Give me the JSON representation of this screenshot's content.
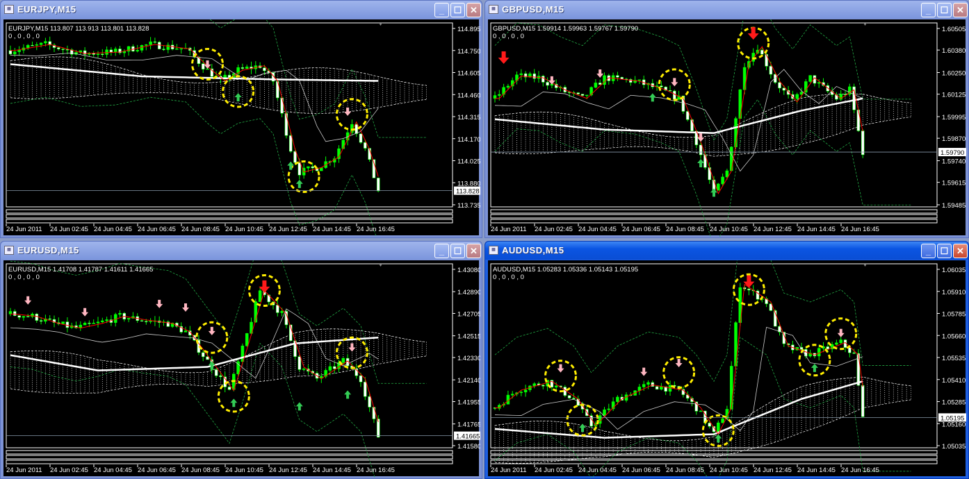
{
  "colors": {
    "bull": "#00ff00",
    "bear": "#ffffff",
    "ma_fast": "#ff0000",
    "ma_slow": "#ffffff",
    "circle": "#ffee00",
    "arrow_up": "#33cc55",
    "arrow_down_small": "#ffb6c1",
    "arrow_down_big": "#ff1a1a",
    "band": "#22aa44"
  },
  "time_labels": [
    "24 Jun 2011",
    "24 Jun 02:45",
    "24 Jun 04:45",
    "24 Jun 06:45",
    "24 Jun 08:45",
    "24 Jun 10:45",
    "24 Jun 12:45",
    "24 Jun 14:45",
    "24 Jun 16:45"
  ],
  "windows": [
    {
      "title": "EURJPY,M15",
      "active": false,
      "info": "EURJPY,M15  113.807 113.913 113.801 113.828",
      "info2": "0 , 0 , 0 , 0",
      "price_labels": [
        "114.895",
        "114.750",
        "114.605",
        "114.460",
        "114.315",
        "114.170",
        "114.025",
        "113.880",
        "113.735"
      ],
      "current": "113.828",
      "path": [
        [
          0,
          114.75
        ],
        [
          8,
          114.79
        ],
        [
          16,
          114.73
        ],
        [
          24,
          114.74
        ],
        [
          32,
          114.79
        ],
        [
          40,
          114.76
        ],
        [
          45,
          114.62
        ],
        [
          48,
          114.55
        ],
        [
          52,
          114.62
        ],
        [
          57,
          114.65
        ],
        [
          60,
          114.55
        ],
        [
          64,
          114.1
        ],
        [
          66,
          113.95
        ],
        [
          70,
          113.98
        ],
        [
          74,
          114.05
        ],
        [
          78,
          114.28
        ],
        [
          81,
          114.1
        ],
        [
          84,
          113.83
        ]
      ],
      "ma_slow": [
        [
          0,
          114.66
        ],
        [
          30,
          114.58
        ],
        [
          60,
          114.56
        ],
        [
          84,
          114.55
        ]
      ],
      "circles": [
        [
          45,
          114.66
        ],
        [
          52,
          114.48
        ],
        [
          67,
          113.92
        ],
        [
          78,
          114.33
        ]
      ],
      "arrows": [
        [
          45,
          114.63,
          "down-small"
        ],
        [
          52,
          114.47,
          "up"
        ],
        [
          66,
          113.9,
          "up"
        ],
        [
          64,
          114.02,
          "up"
        ],
        [
          77,
          114.32,
          "down-small"
        ]
      ]
    },
    {
      "title": "GBPUSD,M15",
      "active": false,
      "info": "GBPUSD,M15  1.59914 1.59963 1.59767 1.59790",
      "info2": "0 , 0 , 0 , 0",
      "price_labels": [
        "1.60505",
        "1.60380",
        "1.60250",
        "1.60125",
        "1.59995",
        "1.59870",
        "1.59740",
        "1.59615",
        "1.59485"
      ],
      "current": "1.59790",
      "path": [
        [
          0,
          1.601
        ],
        [
          5,
          1.6023
        ],
        [
          10,
          1.6022
        ],
        [
          15,
          1.6015
        ],
        [
          20,
          1.601
        ],
        [
          25,
          1.6022
        ],
        [
          32,
          1.602
        ],
        [
          38,
          1.6015
        ],
        [
          42,
          1.601
        ],
        [
          46,
          1.5985
        ],
        [
          50,
          1.5955
        ],
        [
          53,
          1.5968
        ],
        [
          57,
          1.603
        ],
        [
          60,
          1.604
        ],
        [
          64,
          1.602
        ],
        [
          68,
          1.6008
        ],
        [
          72,
          1.6022
        ],
        [
          78,
          1.601
        ],
        [
          81,
          1.6015
        ],
        [
          84,
          1.5979
        ]
      ],
      "ma_slow": [
        [
          0,
          1.5998
        ],
        [
          25,
          1.5992
        ],
        [
          50,
          1.599
        ],
        [
          70,
          1.6003
        ],
        [
          84,
          1.601
        ]
      ],
      "circles": [
        [
          41,
          1.6018
        ],
        [
          59,
          1.6042
        ]
      ],
      "arrows": [
        [
          2,
          1.603,
          "down-big"
        ],
        [
          13,
          1.6018,
          "down-small"
        ],
        [
          24,
          1.6022,
          "down-small"
        ],
        [
          36,
          1.6013,
          "up"
        ],
        [
          41,
          1.6017,
          "down-small"
        ],
        [
          47,
          1.5985,
          "down-small"
        ],
        [
          47,
          1.5975,
          "up"
        ],
        [
          50,
          1.5958,
          "up"
        ],
        [
          59,
          1.6044,
          "down-big"
        ]
      ]
    },
    {
      "title": "EURUSD,M15",
      "active": false,
      "info": "EURUSD,M15  1.41708 1.41787 1.41611 1.41665",
      "info2": "0 , 0 , 0 , 0",
      "price_labels": [
        "1.43080",
        "1.42890",
        "1.42705",
        "1.42515",
        "1.42330",
        "1.42140",
        "1.41955",
        "1.41765",
        "1.41580"
      ],
      "current": "1.41665",
      "path": [
        [
          0,
          1.427
        ],
        [
          5,
          1.4268
        ],
        [
          10,
          1.4262
        ],
        [
          15,
          1.4258
        ],
        [
          20,
          1.4262
        ],
        [
          25,
          1.4268
        ],
        [
          30,
          1.4265
        ],
        [
          36,
          1.4262
        ],
        [
          40,
          1.4255
        ],
        [
          45,
          1.423
        ],
        [
          50,
          1.4205
        ],
        [
          53,
          1.424
        ],
        [
          57,
          1.429
        ],
        [
          62,
          1.427
        ],
        [
          66,
          1.4225
        ],
        [
          70,
          1.4215
        ],
        [
          76,
          1.423
        ],
        [
          80,
          1.4215
        ],
        [
          84,
          1.4166
        ]
      ],
      "ma_slow": [
        [
          0,
          1.4235
        ],
        [
          20,
          1.4222
        ],
        [
          45,
          1.4225
        ],
        [
          65,
          1.4245
        ],
        [
          84,
          1.425
        ]
      ],
      "circles": [
        [
          46,
          1.425
        ],
        [
          51,
          1.42
        ],
        [
          58,
          1.429
        ],
        [
          78,
          1.4237
        ]
      ],
      "arrows": [
        [
          4,
          1.4278,
          "down-small"
        ],
        [
          17,
          1.4268,
          "down-small"
        ],
        [
          34,
          1.4275,
          "down-small"
        ],
        [
          40,
          1.4272,
          "down-small"
        ],
        [
          46,
          1.4252,
          "down-small"
        ],
        [
          46,
          1.423,
          "up"
        ],
        [
          51,
          1.4198,
          "up"
        ],
        [
          58,
          1.4288,
          "down-big"
        ],
        [
          66,
          1.4195,
          "up"
        ],
        [
          77,
          1.4205,
          "up"
        ],
        [
          78,
          1.4238,
          "down-small"
        ]
      ]
    },
    {
      "title": "AUDUSD,M15",
      "active": true,
      "info": "AUDUSD,M15  1.05283 1.05336 1.05143 1.05195",
      "info2": "0 , 0 , 0 , 0",
      "price_labels": [
        "1.06035",
        "1.05910",
        "1.05785",
        "1.05660",
        "1.05535",
        "1.05410",
        "1.05285",
        "1.05160",
        "1.05035"
      ],
      "current": "1.05195",
      "path": [
        [
          0,
          1.0525
        ],
        [
          5,
          1.0535
        ],
        [
          12,
          1.054
        ],
        [
          18,
          1.053
        ],
        [
          22,
          1.0515
        ],
        [
          28,
          1.053
        ],
        [
          35,
          1.0538
        ],
        [
          42,
          1.0535
        ],
        [
          46,
          1.0525
        ],
        [
          50,
          1.051
        ],
        [
          53,
          1.0525
        ],
        [
          56,
          1.0595
        ],
        [
          62,
          1.0585
        ],
        [
          66,
          1.056
        ],
        [
          72,
          1.0555
        ],
        [
          79,
          1.0562
        ],
        [
          82,
          1.0555
        ],
        [
          84,
          1.0519
        ]
      ],
      "ma_slow": [
        [
          0,
          1.0513
        ],
        [
          25,
          1.0508
        ],
        [
          50,
          1.051
        ],
        [
          70,
          1.053
        ],
        [
          84,
          1.054
        ]
      ],
      "circles": [
        [
          15,
          1.0543
        ],
        [
          20,
          1.0518
        ],
        [
          42,
          1.0545
        ],
        [
          51,
          1.0512
        ],
        [
          58,
          1.0592
        ],
        [
          73,
          1.0552
        ],
        [
          79,
          1.0567
        ]
      ],
      "arrows": [
        [
          15,
          1.0545,
          "down-small"
        ],
        [
          34,
          1.0543,
          "down-small"
        ],
        [
          42,
          1.0548,
          "down-small"
        ],
        [
          20,
          1.0516,
          "up"
        ],
        [
          51,
          1.051,
          "up"
        ],
        [
          58,
          1.0593,
          "down-big"
        ],
        [
          73,
          1.055,
          "up"
        ],
        [
          79,
          1.0565,
          "down-small"
        ]
      ]
    }
  ]
}
